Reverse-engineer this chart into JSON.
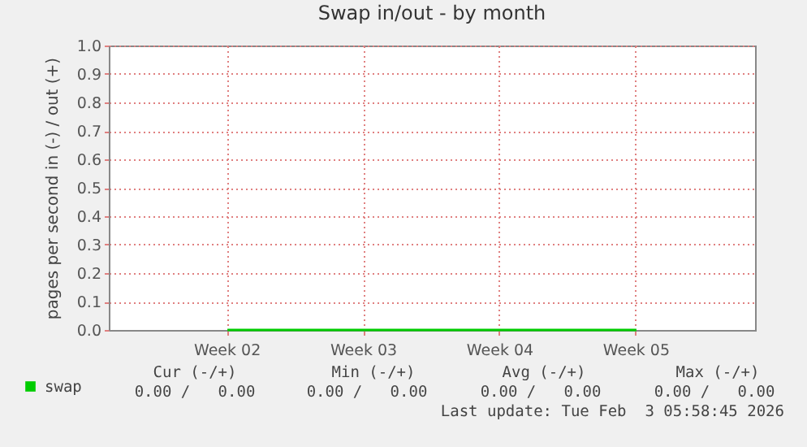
{
  "chart_data": {
    "type": "line",
    "title": "Swap in/out - by month",
    "ylabel": "pages per second in (-) / out (+)",
    "categories": [
      "Week 02",
      "Week 03",
      "Week 04",
      "Week 05"
    ],
    "series": [
      {
        "name": "swap",
        "color": "#00cc00",
        "values": [
          0,
          0,
          0,
          0
        ]
      }
    ],
    "ylim": [
      0,
      1
    ],
    "yticks": [
      {
        "value": 0,
        "label": "0.0"
      },
      {
        "value": 0.1,
        "label": "0.1"
      },
      {
        "value": 0.2,
        "label": "0.2"
      },
      {
        "value": 0.3,
        "label": "0.3"
      },
      {
        "value": 0.4,
        "label": "0.4"
      },
      {
        "value": 0.5,
        "label": "0.5"
      },
      {
        "value": 0.6,
        "label": "0.6"
      },
      {
        "value": 0.7,
        "label": "0.7"
      },
      {
        "value": 0.8,
        "label": "0.8"
      },
      {
        "value": 0.9,
        "label": "0.9"
      },
      {
        "value": 1,
        "label": "1.0"
      }
    ],
    "grid": true,
    "legend": "bottom left",
    "marker": "none",
    "line_style": "solid",
    "annotations": [
      "Cur (-/+)",
      "Min (-/+)",
      "Avg (-/+)",
      "Max (-/+)",
      "0.00 /   0.00",
      "0.00 /   0.00",
      "0.00 /   0.00",
      "0.00 /   0.00",
      "Last update: Tue Feb  3 05:58:45 2026"
    ]
  }
}
